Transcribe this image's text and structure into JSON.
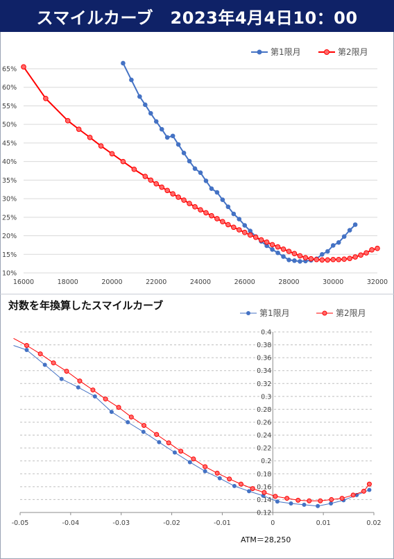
{
  "title": "スマイルカーブ　2023年4月4日10：00",
  "colors": {
    "banner_bg": "#0f2267",
    "series1": "#4472c4",
    "series2": "#ff0000",
    "series2_fill": "#ff6b6b",
    "grid": "#d9d9d9"
  },
  "chart_data": [
    {
      "type": "line",
      "title": "",
      "xlabel": "",
      "ylabel": "",
      "xlim": [
        16000,
        32000
      ],
      "ylim": [
        10,
        65
      ],
      "xticks": [
        "16000",
        "18000",
        "20000",
        "22000",
        "24000",
        "26000",
        "28000",
        "30000",
        "32000"
      ],
      "yticks": [
        "10%",
        "15%",
        "20%",
        "25%",
        "30%",
        "35%",
        "40%",
        "45%",
        "50%",
        "55%",
        "60%",
        "65%"
      ],
      "grid": "horizontal",
      "legend": "top-right",
      "series": [
        {
          "name": "第1限月",
          "marker": "circle",
          "x": [
            20500,
            20875,
            21250,
            21500,
            21750,
            22000,
            22250,
            22500,
            22750,
            23000,
            23250,
            23500,
            23750,
            24000,
            24250,
            24500,
            24750,
            25000,
            25250,
            25500,
            25750,
            26000,
            26250,
            26500,
            26750,
            27000,
            27250,
            27500,
            27750,
            28000,
            28250,
            28500,
            28750,
            29000,
            29250,
            29500,
            29750,
            30000,
            30250,
            30500,
            30750,
            31000,
            31250
          ],
          "y": [
            66.5,
            62,
            57.5,
            55.3,
            53,
            50.8,
            48.7,
            46.5,
            46.9,
            44.6,
            42.3,
            40.1,
            38.1,
            37,
            34.8,
            32.7,
            31.7,
            29.7,
            27.8,
            25.9,
            24.5,
            22.8,
            21.3,
            19.8,
            18.5,
            17.3,
            16.3,
            15.4,
            14.4,
            13.5,
            13.3,
            13.1,
            13.2,
            13.4,
            13.8,
            15.0,
            15.8,
            17.4,
            18.2,
            19.8,
            21.5,
            23.0,
            null
          ]
        },
        {
          "name": "第2限月",
          "marker": "circle",
          "x": [
            16000,
            17000,
            18000,
            18500,
            19000,
            19500,
            20000,
            20500,
            21000,
            21500,
            21750,
            22000,
            22250,
            22500,
            22750,
            23000,
            23250,
            23500,
            23750,
            24000,
            24250,
            24500,
            24750,
            25000,
            25250,
            25500,
            25750,
            26000,
            26250,
            26500,
            26750,
            27000,
            27250,
            27500,
            27750,
            28000,
            28250,
            28500,
            28750,
            29000,
            29250,
            29500,
            29750,
            30000,
            30250,
            30500,
            30750,
            31000,
            31250,
            31500,
            31750,
            32000
          ],
          "y": [
            65.5,
            57,
            51,
            48.7,
            46.5,
            44.2,
            42.1,
            40,
            37.9,
            36,
            35,
            34,
            33.1,
            32.2,
            31.3,
            30.4,
            29.6,
            28.7,
            27.8,
            27,
            26.2,
            25.4,
            24.6,
            23.8,
            23,
            22.3,
            21.6,
            20.9,
            20.2,
            19.6,
            18.9,
            18.3,
            17.6,
            17,
            16.4,
            15.8,
            15.2,
            14.6,
            14.1,
            13.8,
            13.6,
            13.5,
            13.5,
            13.6,
            13.6,
            13.7,
            13.9,
            14.3,
            14.8,
            15.4,
            16.2,
            16.6
          ]
        }
      ]
    },
    {
      "type": "line",
      "title": "対数を年換算したスマイルカーブ",
      "xlabel": "",
      "ylabel": "",
      "xlim": [
        -0.05,
        0.02
      ],
      "ylim": [
        0.12,
        0.4
      ],
      "xticks": [
        "-0.05",
        "-0.04",
        "-0.03",
        "-0.02",
        "-0.01",
        "0",
        "0.01",
        "0.02"
      ],
      "yticks": [
        "0.12",
        "0.14",
        "0.16",
        "0.18",
        "0.2",
        "0.22",
        "0.24",
        "0.26",
        "0.28",
        "0.3",
        "0.32",
        "0.34",
        "0.36",
        "0.38",
        "0.4"
      ],
      "grid": "horizontal-dashed",
      "legend": "top-right",
      "annotation": "ATM＝28,250",
      "series": [
        {
          "name": "第1限月",
          "marker": "circle",
          "x": [
            -0.0513,
            -0.0487,
            -0.0451,
            -0.0418,
            -0.0385,
            -0.0352,
            -0.0319,
            -0.0287,
            -0.0256,
            -0.0225,
            -0.0194,
            -0.0164,
            -0.0134,
            -0.0105,
            -0.0076,
            -0.0047,
            -0.0019,
            0.0009,
            0.0036,
            0.0062,
            0.0089,
            0.0115,
            0.014,
            0.0166,
            0.0191
          ],
          "y": [
            0.379,
            0.372,
            0.349,
            0.327,
            0.314,
            0.3,
            0.276,
            0.26,
            0.245,
            0.229,
            0.213,
            0.198,
            0.184,
            0.173,
            0.161,
            0.153,
            0.146,
            0.137,
            0.134,
            0.132,
            0.13,
            0.134,
            0.139,
            0.147,
            0.155
          ]
        },
        {
          "name": "第2限月",
          "marker": "circle",
          "x": [
            -0.0513,
            -0.0487,
            -0.046,
            -0.0434,
            -0.0408,
            -0.0382,
            -0.0356,
            -0.0331,
            -0.0305,
            -0.028,
            -0.0255,
            -0.023,
            -0.0206,
            -0.0182,
            -0.0157,
            -0.0134,
            -0.011,
            -0.0086,
            -0.0063,
            -0.004,
            -0.0017,
            0.0005,
            0.0028,
            0.005,
            0.0072,
            0.0094,
            0.0116,
            0.0137,
            0.0159,
            0.018,
            0.0191
          ],
          "y": [
            0.39,
            0.379,
            0.366,
            0.352,
            0.339,
            0.324,
            0.31,
            0.296,
            0.283,
            0.268,
            0.255,
            0.241,
            0.228,
            0.215,
            0.203,
            0.191,
            0.181,
            0.172,
            0.164,
            0.157,
            0.151,
            0.145,
            0.142,
            0.139,
            0.138,
            0.138,
            0.14,
            0.142,
            0.147,
            0.153,
            0.164
          ]
        }
      ]
    }
  ]
}
